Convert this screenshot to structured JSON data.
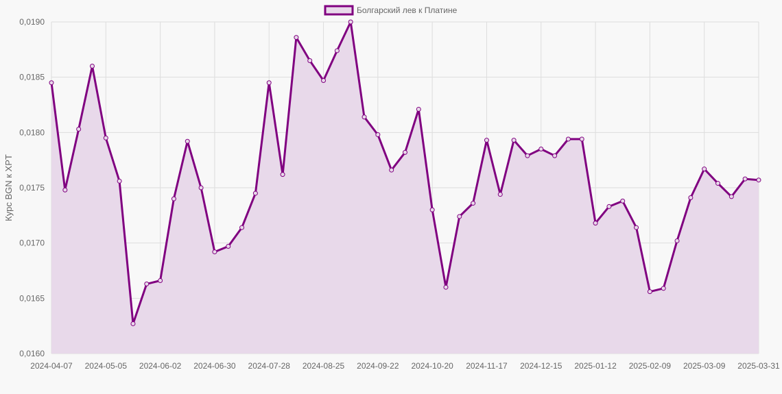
{
  "chart_data": {
    "type": "area",
    "title": "",
    "xlabel": "",
    "ylabel": "Курс BGN к XPT",
    "ylim": [
      0.016,
      0.019
    ],
    "y_ticks": [
      "0,0190",
      "0,0185",
      "0,0180",
      "0,0175",
      "0,0170",
      "0,0165",
      "0,0160"
    ],
    "y_tick_values": [
      0.019,
      0.0185,
      0.018,
      0.0175,
      0.017,
      0.0165,
      0.016
    ],
    "grid": true,
    "legend_position": "top",
    "colors": {
      "line": "#800080",
      "fill": "#e8d9ea",
      "background": "#f8f8f8",
      "grid": "#dddddd"
    },
    "x_tick_labels": [
      "2024-04-07",
      "2024-05-05",
      "2024-06-02",
      "2024-06-30",
      "2024-07-28",
      "2024-08-25",
      "2024-09-22",
      "2024-10-20",
      "2024-11-17",
      "2024-12-15",
      "2025-01-12",
      "2025-02-09",
      "2025-03-09",
      "2025-03-31"
    ],
    "categories": [
      "2024-04-07",
      "2024-04-14",
      "2024-04-21",
      "2024-04-28",
      "2024-05-05",
      "2024-05-12",
      "2024-05-19",
      "2024-05-26",
      "2024-06-02",
      "2024-06-09",
      "2024-06-16",
      "2024-06-23",
      "2024-06-30",
      "2024-07-07",
      "2024-07-14",
      "2024-07-21",
      "2024-07-28",
      "2024-08-04",
      "2024-08-11",
      "2024-08-18",
      "2024-08-25",
      "2024-09-01",
      "2024-09-08",
      "2024-09-15",
      "2024-09-22",
      "2024-09-29",
      "2024-10-06",
      "2024-10-13",
      "2024-10-20",
      "2024-10-27",
      "2024-11-03",
      "2024-11-10",
      "2024-11-17",
      "2024-11-24",
      "2024-12-01",
      "2024-12-08",
      "2024-12-15",
      "2024-12-22",
      "2024-12-29",
      "2025-01-05",
      "2025-01-12",
      "2025-01-19",
      "2025-01-26",
      "2025-02-02",
      "2025-02-09",
      "2025-02-16",
      "2025-02-23",
      "2025-03-02",
      "2025-03-09",
      "2025-03-16",
      "2025-03-23",
      "2025-03-30",
      "2025-03-31"
    ],
    "series": [
      {
        "name": "Болгарский лев к Платине",
        "values": [
          0.01845,
          0.01748,
          0.01803,
          0.0186,
          0.01795,
          0.01756,
          0.01627,
          0.01663,
          0.01666,
          0.0174,
          0.01792,
          0.0175,
          0.01692,
          0.01697,
          0.01714,
          0.01745,
          0.01845,
          0.01762,
          0.01886,
          0.01865,
          0.01847,
          0.01874,
          0.019,
          0.01814,
          0.01798,
          0.01766,
          0.01782,
          0.01821,
          0.0173,
          0.0166,
          0.01724,
          0.01736,
          0.01793,
          0.01744,
          0.01793,
          0.01779,
          0.01785,
          0.01779,
          0.01794,
          0.01794,
          0.01718,
          0.01733,
          0.01738,
          0.01714,
          0.01656,
          0.01659,
          0.01702,
          0.01741,
          0.01767,
          0.01754,
          0.01742,
          0.01758,
          0.01757
        ]
      }
    ]
  }
}
